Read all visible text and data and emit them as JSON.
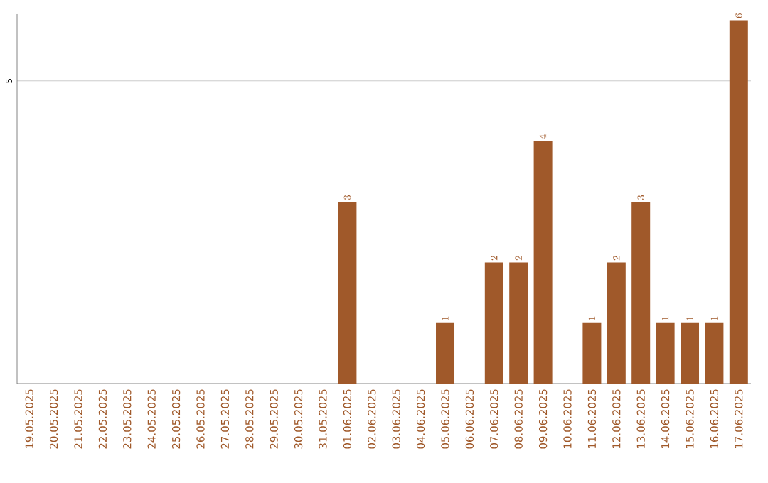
{
  "chart_data": {
    "type": "bar",
    "categories": [
      "19.05.2025",
      "20.05.2025",
      "21.05.2025",
      "22.05.2025",
      "23.05.2025",
      "24.05.2025",
      "25.05.2025",
      "26.05.2025",
      "27.05.2025",
      "28.05.2025",
      "29.05.2025",
      "30.05.2025",
      "31.05.2025",
      "01.06.2025",
      "02.06.2025",
      "03.06.2025",
      "04.06.2025",
      "05.06.2025",
      "06.06.2025",
      "07.06.2025",
      "08.06.2025",
      "09.06.2025",
      "10.06.2025",
      "11.06.2025",
      "12.06.2025",
      "13.06.2025",
      "14.06.2025",
      "15.06.2025",
      "16.06.2025",
      "17.06.2025"
    ],
    "values": [
      null,
      null,
      null,
      null,
      null,
      null,
      null,
      null,
      null,
      null,
      null,
      null,
      null,
      3,
      null,
      null,
      null,
      1,
      null,
      2,
      2,
      4,
      null,
      1,
      2,
      3,
      1,
      1,
      1,
      6
    ],
    "data_labels": true,
    "color": "#a0592a",
    "ylim": [
      0,
      6.1
    ],
    "yticks": [
      5
    ],
    "grid": "y"
  }
}
